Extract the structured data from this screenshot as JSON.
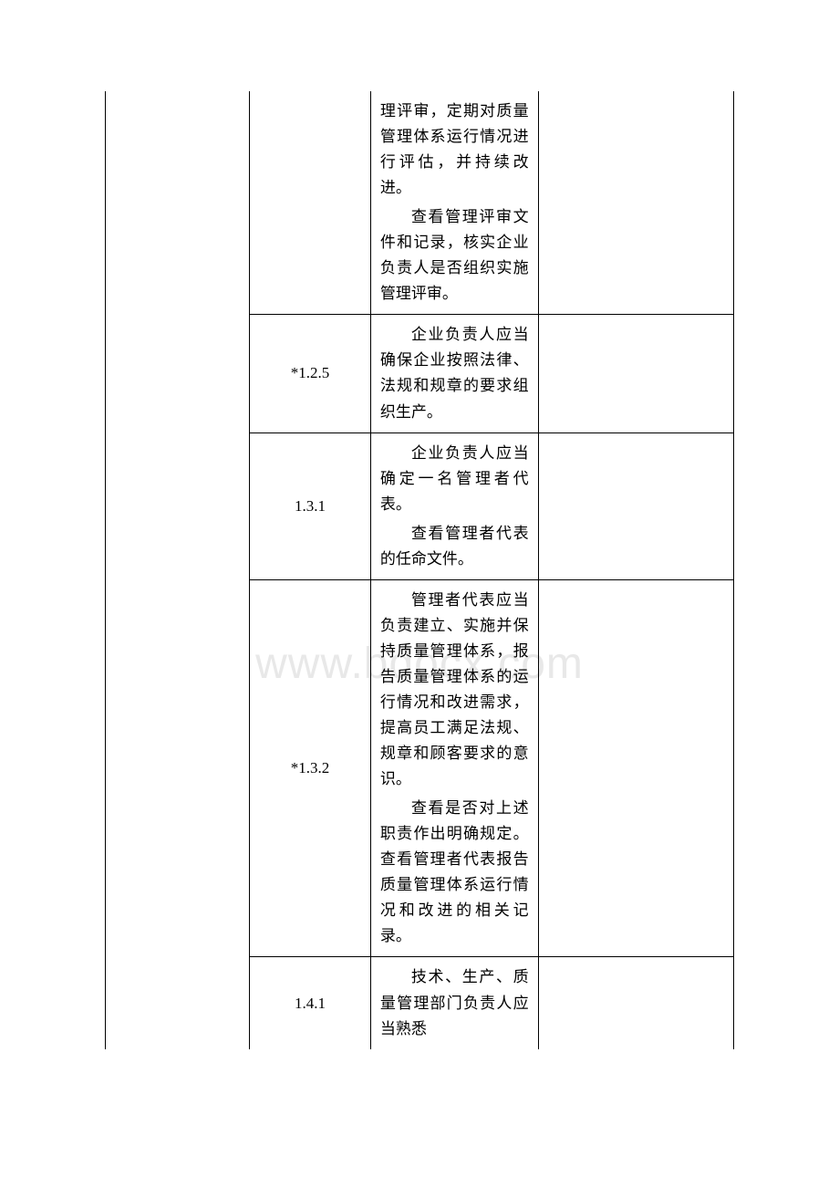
{
  "watermark": "www.bdocx.com",
  "table": {
    "columns": {
      "col1_width": 155,
      "col2_width": 130,
      "col3_width": 180,
      "col4_width": 210
    },
    "border_color": "#000000",
    "font_size": 17,
    "line_height": 1.65,
    "rows": [
      {
        "col2": "",
        "col3_paras": [
          "理评审，定期对质量管理体系运行情况进行评估，并持续改进。",
          "查看管理评审文件和记录，核实企业负责人是否组织实施管理评审。"
        ],
        "col4": "",
        "first_row": true
      },
      {
        "col2": "*1.2.5",
        "col3_paras": [
          "企业负责人应当确保企业按照法律、法规和规章的要求组织生产。"
        ],
        "col4": ""
      },
      {
        "col2": "1.3.1",
        "col3_paras": [
          "企业负责人应当确定一名管理者代表。",
          "查看管理者代表的任命文件。"
        ],
        "col4": ""
      },
      {
        "col2": "*1.3.2",
        "col3_paras": [
          "管理者代表应当负责建立、实施并保持质量管理体系，报告质量管理体系的运行情况和改进需求，提高员工满足法规、规章和顾客要求的意识。",
          "查看是否对上述职责作出明确规定。查看管理者代表报告质量管理体系运行情况和改进的相关记录。"
        ],
        "col4": ""
      },
      {
        "col2": "1.4.1",
        "col3_paras": [
          "技术、生产、质量管理部门负责人应当熟悉"
        ],
        "col4": "",
        "last_row": true
      }
    ]
  }
}
